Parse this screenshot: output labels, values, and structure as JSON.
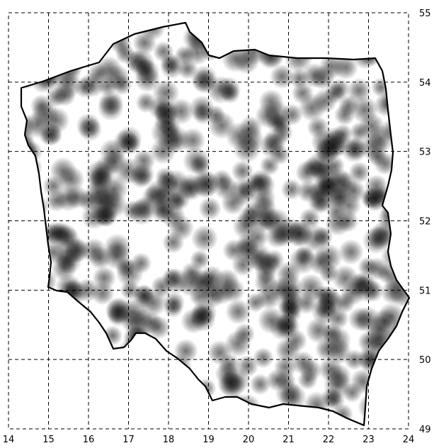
{
  "map": {
    "x_ticks": [
      "14",
      "15",
      "16",
      "17",
      "18",
      "19",
      "20",
      "21",
      "22",
      "23",
      "24"
    ],
    "y_ticks": [
      "49",
      "50",
      "51",
      "52",
      "53",
      "54",
      "55"
    ],
    "colors": {
      "border": "#000000",
      "grid": "#000000",
      "dot": "#000000",
      "background": "#ffffff"
    },
    "dot_count_visible": "dense grayscale density dots"
  }
}
